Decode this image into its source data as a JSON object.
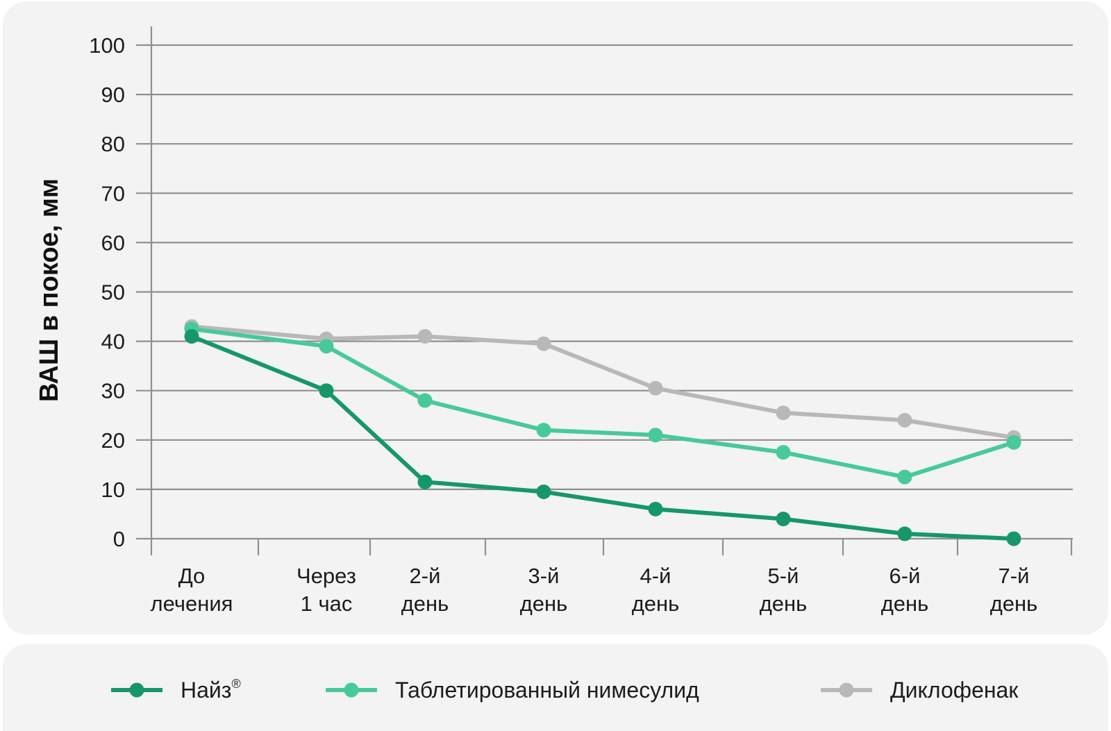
{
  "chart_data": {
    "type": "line",
    "ylabel": "ВАШ в покое, мм",
    "ylim": [
      0,
      100
    ],
    "yticks": [
      0,
      10,
      20,
      30,
      40,
      50,
      60,
      70,
      80,
      90,
      100
    ],
    "categories": [
      [
        "До",
        "лечения"
      ],
      [
        "Через",
        "1 час"
      ],
      [
        "2-й",
        "день"
      ],
      [
        "3-й",
        "день"
      ],
      [
        "4-й",
        "день"
      ],
      [
        "5-й",
        "день"
      ],
      [
        "6-й",
        "день"
      ],
      [
        "7-й",
        "день"
      ]
    ],
    "grid": true,
    "legend_position": "bottom",
    "series": [
      {
        "name": "Диклофенак",
        "color": "#b8b8b8",
        "values": [
          43,
          40.5,
          41,
          39.5,
          30.5,
          25.5,
          24,
          20.5
        ]
      },
      {
        "name": "Таблетированный нимесулид",
        "color": "#48c99a",
        "values": [
          42.5,
          39,
          28,
          22,
          21,
          17.5,
          12.5,
          19.5
        ]
      },
      {
        "name": "Найз",
        "name_mark": "®",
        "color": "#16976a",
        "values": [
          41,
          30,
          11.5,
          9.5,
          6,
          4,
          1,
          0
        ]
      }
    ],
    "legend_order": [
      2,
      1,
      0
    ]
  }
}
